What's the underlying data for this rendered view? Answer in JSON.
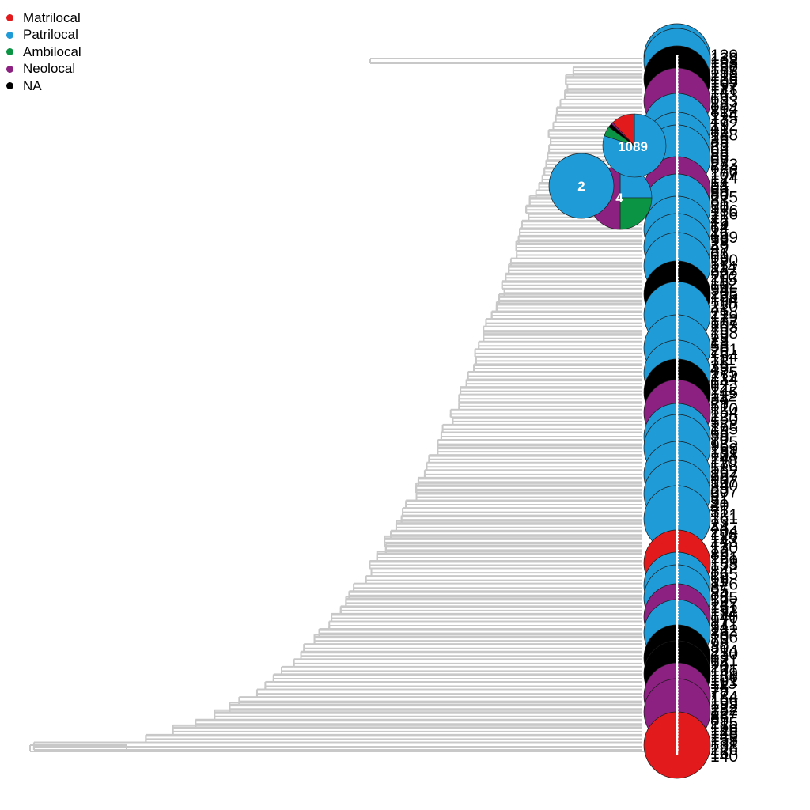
{
  "legend": {
    "items": [
      {
        "label": "Matrilocal",
        "color": "#e31a1c"
      },
      {
        "label": "Patrilocal",
        "color": "#1f9bd7"
      },
      {
        "label": "Ambilocal",
        "color": "#0a9444"
      },
      {
        "label": "Neolocal",
        "color": "#8c2181"
      },
      {
        "label": "NA",
        "color": "#000000"
      }
    ]
  },
  "node_pies": [
    {
      "label": "1089",
      "slices": {
        "Patrilocal": 0.8,
        "Ambilocal": 0.05,
        "NA": 0.02,
        "Neolocal": 0.01,
        "Matrilocal": 0.12
      }
    },
    {
      "label": "2",
      "slices": {
        "Patrilocal": 1.0
      }
    },
    {
      "label": "4",
      "slices": {
        "Ambilocal": 0.25,
        "Neolocal": 0.5,
        "Patrilocal": 0.25
      }
    }
  ],
  "tip_labels": [
    "129",
    "139",
    "193",
    "168",
    "187",
    "158",
    "213",
    "126",
    "105",
    "197",
    "117",
    "141",
    "163",
    "65",
    "133",
    "88",
    "104",
    "81",
    "174",
    "135",
    "47",
    "192",
    "41",
    "82",
    "188",
    "26",
    "35",
    "25",
    "63",
    "68",
    "86",
    "66",
    "67",
    "223",
    "62",
    "176",
    "107",
    "124",
    "17",
    "54",
    "64",
    "69",
    "80",
    "225",
    "83",
    "91",
    "50",
    "186",
    "216",
    "7",
    "42",
    "19",
    "64",
    "14",
    "46",
    "189",
    "99",
    "28",
    "49",
    "87",
    "61",
    "69",
    "190",
    "57",
    "114",
    "237",
    "92",
    "202",
    "115",
    "102",
    "60",
    "34",
    "205",
    "165",
    "194",
    "110",
    "220",
    "43",
    "21",
    "179",
    "172",
    "107",
    "203",
    "29",
    "198",
    "79",
    "23",
    "13",
    "56",
    "201",
    "76",
    "154",
    "111",
    "78",
    "35",
    "45",
    "175",
    "211",
    "134",
    "64",
    "6",
    "142",
    "145",
    "112",
    "34",
    "29",
    "51",
    "120",
    "154",
    "22",
    "150",
    "5",
    "173",
    "195",
    "65",
    "39",
    "70",
    "125",
    "96",
    "169",
    "181",
    "108",
    "24",
    "110",
    "178",
    "58",
    "162",
    "227",
    "90",
    "107",
    "240",
    "89",
    "207",
    "9",
    "31",
    "51",
    "40",
    "4",
    "31",
    "121",
    "161",
    "73",
    "2",
    "44",
    "204",
    "128",
    "119",
    "143",
    "47",
    "130",
    "12",
    "89",
    "121",
    "199",
    "153",
    "122",
    "84",
    "165",
    "66",
    "11",
    "226",
    "37",
    "95",
    "84",
    "185",
    "59",
    "147",
    "151",
    "152",
    "114",
    "140",
    "97",
    "171",
    "94",
    "132",
    "36",
    "106",
    "73",
    "98",
    "30",
    "214",
    "230",
    "63",
    "121",
    "94",
    "20",
    "161",
    "149",
    "166",
    "101",
    "113",
    "18",
    "75",
    "77",
    "184",
    "156",
    "195",
    "122",
    "232",
    "127",
    "86",
    "85",
    "215",
    "166",
    "146",
    "148",
    "149",
    "155",
    "131",
    "138",
    "226",
    "16",
    "140"
  ]
}
